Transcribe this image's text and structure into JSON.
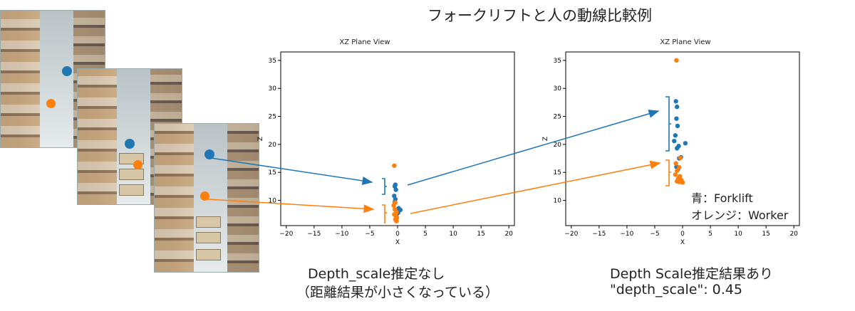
{
  "title": "フォークリフトと人の動線比較例",
  "legend": {
    "forklift": "青：Forklift",
    "worker": "オレンジ：Worker"
  },
  "captions": {
    "left_line1": "Depth_scale推定なし",
    "left_line2": "（距離結果が小さくなっている）",
    "right_line1": "Depth Scale推定結果あり",
    "right_line2": "\"depth_scale\": 0.45"
  },
  "colors": {
    "forklift": "#1f77b4",
    "worker": "#ff7f0e"
  },
  "chart_data": [
    {
      "type": "scatter",
      "title": "XZ Plane View",
      "xlabel": "X",
      "ylabel": "Z",
      "xlim": [
        -21,
        21
      ],
      "ylim": [
        5.5,
        36.5
      ],
      "xticks": [
        -20,
        -15,
        -10,
        -5,
        0,
        5,
        10,
        15,
        20
      ],
      "yticks": [
        10,
        15,
        20,
        25,
        30,
        35
      ],
      "series": [
        {
          "color": "#1f77b4",
          "points": [
            [
              -0.5,
              12.5
            ],
            [
              -0.4,
              12.8
            ],
            [
              -0.3,
              11.9
            ],
            [
              -0.6,
              10.8
            ],
            [
              -0.4,
              10.2
            ],
            [
              -0.5,
              9.7
            ],
            [
              0.2,
              8.6
            ],
            [
              0.5,
              8.3
            ],
            [
              0.1,
              7.8
            ],
            [
              -0.2,
              7.4
            ]
          ]
        },
        {
          "color": "#ff7f0e",
          "points": [
            [
              -0.6,
              16.2
            ],
            [
              -0.4,
              9.6
            ],
            [
              -0.7,
              9.1
            ],
            [
              -0.5,
              8.4
            ],
            [
              -0.2,
              7.9
            ],
            [
              -0.6,
              7.5
            ],
            [
              -0.3,
              7.2
            ],
            [
              -0.1,
              6.9
            ],
            [
              -0.4,
              6.6
            ],
            [
              -0.2,
              6.3
            ]
          ]
        }
      ]
    },
    {
      "type": "scatter",
      "title": "XZ Plane View",
      "xlabel": "X",
      "ylabel": "Z",
      "xlim": [
        -21,
        21
      ],
      "ylim": [
        5.5,
        36.5
      ],
      "xticks": [
        -20,
        -15,
        -10,
        -5,
        0,
        5,
        10,
        15,
        20
      ],
      "yticks": [
        10,
        15,
        20,
        25,
        30,
        35
      ],
      "series": [
        {
          "color": "#1f77b4",
          "points": [
            [
              -1.2,
              27.7
            ],
            [
              -1.0,
              26.7
            ],
            [
              -1.1,
              24.6
            ],
            [
              -0.9,
              23.3
            ],
            [
              -1.3,
              21.6
            ],
            [
              0.5,
              20.2
            ],
            [
              -1.5,
              20.6
            ],
            [
              -0.7,
              19.7
            ],
            [
              -1.0,
              19.3
            ],
            [
              -0.3,
              17.7
            ],
            [
              -0.6,
              17.5
            ],
            [
              -1.1,
              16.0
            ],
            [
              -0.8,
              15.6
            ]
          ]
        },
        {
          "color": "#ff7f0e",
          "points": [
            [
              -1.1,
              35.0
            ],
            [
              -0.4,
              17.6
            ],
            [
              -1.2,
              16.6
            ],
            [
              -0.6,
              15.9
            ],
            [
              -1.0,
              15.3
            ],
            [
              -1.3,
              14.6
            ],
            [
              -0.5,
              14.3
            ],
            [
              -0.8,
              13.9
            ],
            [
              -0.2,
              13.6
            ],
            [
              -1.0,
              13.4
            ],
            [
              -0.6,
              13.3
            ],
            [
              0.0,
              13.2
            ]
          ]
        }
      ]
    }
  ]
}
